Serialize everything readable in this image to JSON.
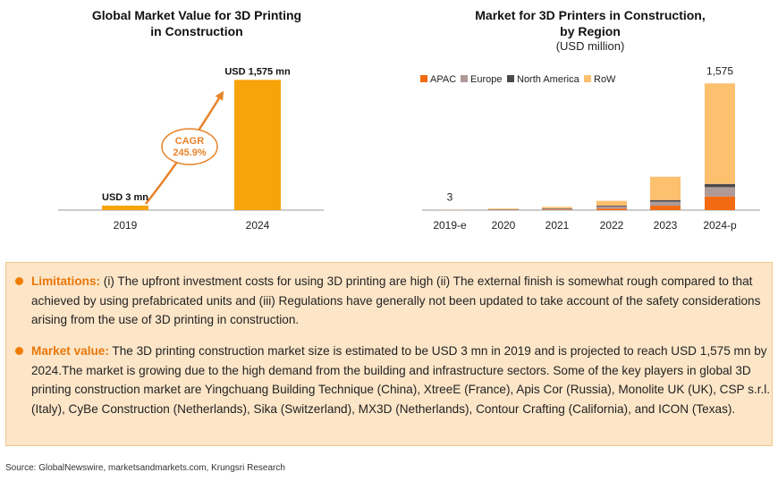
{
  "left_chart": {
    "title_line1": "Global Market Value for 3D Printing",
    "title_line2": "in Construction",
    "cagr_label": "CAGR",
    "cagr_value": "245.9%",
    "arrow_color": "#e8832a"
  },
  "right_chart": {
    "title_line1": "Market for 3D Printers in Construction,",
    "title_line2": "by Region",
    "subtitle": "(USD million)"
  },
  "chart_data": [
    {
      "type": "bar",
      "title": "Global Market Value for 3D Printing in Construction",
      "categories": [
        "2019",
        "2024"
      ],
      "values": [
        3,
        1575
      ],
      "data_labels": [
        "USD 3 mn",
        "USD 1,575 mn"
      ],
      "ylim": [
        0,
        1600
      ],
      "grid": false,
      "color": "#f7a30a"
    },
    {
      "type": "bar",
      "stacked": true,
      "title": "Market for 3D Printers in Construction, by Region",
      "subtitle": "(USD million)",
      "categories": [
        "2019-e",
        "2020",
        "2021",
        "2022",
        "2023",
        "2024-p"
      ],
      "series": [
        {
          "name": "APAC",
          "color": "#f26b12",
          "values": [
            1,
            4,
            8,
            20,
            55,
            170
          ]
        },
        {
          "name": "Europe",
          "color": "#b09a98",
          "values": [
            1,
            5,
            10,
            25,
            50,
            115
          ]
        },
        {
          "name": "North America",
          "color": "#4a4a4a",
          "values": [
            0,
            3,
            5,
            10,
            20,
            40
          ]
        },
        {
          "name": "RoW",
          "color": "#fcc06f",
          "values": [
            1,
            8,
            17,
            60,
            290,
            1250
          ]
        }
      ],
      "data_labels": {
        "2019-e": "3",
        "2024-p": "1,575"
      },
      "ylim": [
        0,
        1600
      ],
      "legend_position": "top-left",
      "grid": false
    }
  ],
  "notes": {
    "limitations_label": "Limitations:",
    "limitations_text": " (i) The upfront investment costs for using 3D printing are high (ii) The external finish is somewhat rough compared to that achieved by using prefabricated units and (iii) Regulations have generally not been updated to take account of the safety considerations arising from the use of 3D printing in construction.",
    "market_label": "Market value:",
    "market_text": " The 3D printing construction market size is estimated to be USD 3 mn in 2019 and is projected to reach USD 1,575 mn by 2024.The market is growing due to the high demand from the building and infrastructure sectors. Some of the key players in global 3D printing construction market are Yingchuang Building Technique (China), XtreeE (France), Apis Cor (Russia), Monolite UK (UK), CSP s.r.l. (Italy), CyBe Construction (Netherlands), Sika (Switzerland), MX3D (Netherlands), Contour Crafting (California), and ICON (Texas).",
    "bullet_color": "#f07d00"
  },
  "source": "Source: GlobalNewswire, marketsandmarkets.com, Krungsri Research"
}
